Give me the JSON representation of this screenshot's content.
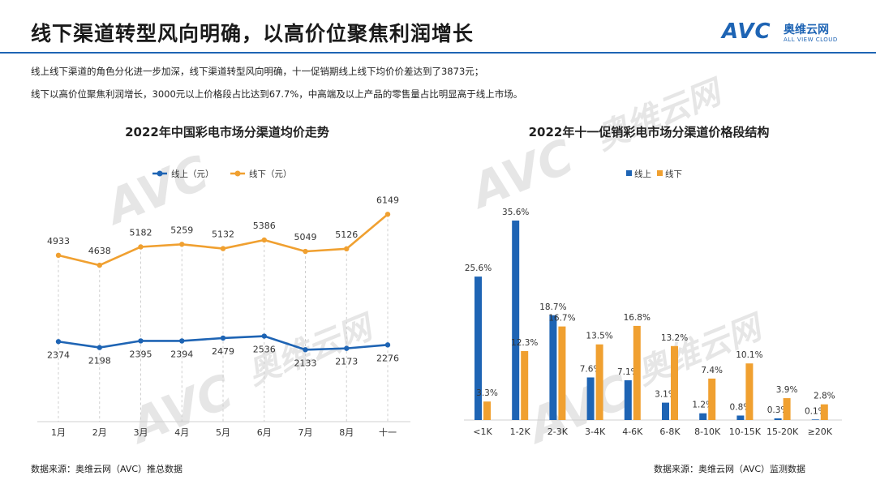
{
  "header": {
    "title": "线下渠道转型风向明确，以高价位聚焦利润增长",
    "logo_mark": "AVC",
    "logo_cn": "奥维云网",
    "logo_en": "ALL VIEW CLOUD",
    "brand_color": "#1e64b4"
  },
  "description": {
    "line1": "线上线下渠道的角色分化进一步加深，线下渠道转型风向明确，十一促销期线上线下均价价差达到了3873元；",
    "line2": "线下以高价位聚焦利润增长，3000元以上价格段占比达到67.7%，中高端及以上产品的零售量占比明显高于线上市场。"
  },
  "sources": {
    "left": "数据来源：奥维云网（AVC）推总数据",
    "right": "数据来源：奥维云网（AVC）监测数据"
  },
  "chart_data": [
    {
      "type": "line",
      "title": "2022年中国彩电市场分渠道均价走势",
      "categories": [
        "1月",
        "2月",
        "3月",
        "4月",
        "5月",
        "6月",
        "7月",
        "8月",
        "十一"
      ],
      "series": [
        {
          "name": "线上（元）",
          "color": "#1e64b4",
          "values": [
            2374,
            2198,
            2395,
            2394,
            2479,
            2536,
            2133,
            2173,
            2276
          ]
        },
        {
          "name": "线下（元）",
          "color": "#f0a030",
          "values": [
            4933,
            4638,
            5182,
            5259,
            5132,
            5386,
            5049,
            5126,
            6149
          ]
        }
      ],
      "legend": "top",
      "grid": false,
      "ylim": [
        0,
        7000
      ]
    },
    {
      "type": "bar",
      "title": "2022年十一促销彩电市场分渠道价格段结构",
      "categories": [
        "<1K",
        "1-2K",
        "2-3K",
        "3-4K",
        "4-6K",
        "6-8K",
        "8-10K",
        "10-15K",
        "15-20K",
        "≥20K"
      ],
      "series": [
        {
          "name": "线上",
          "color": "#1e64b4",
          "values": [
            25.6,
            35.6,
            18.7,
            7.6,
            7.1,
            3.1,
            1.2,
            0.8,
            0.3,
            0.1
          ]
        },
        {
          "name": "线下",
          "color": "#f0a030",
          "values": [
            3.3,
            12.3,
            16.7,
            13.5,
            16.8,
            13.2,
            7.4,
            10.1,
            3.9,
            2.8
          ]
        }
      ],
      "value_labels": {
        "line": [
          "25.6%",
          "35.6%",
          "18.7%",
          "7.6%",
          "7.1%",
          "3.1%",
          "1.2%",
          "0.8%",
          "0.3%",
          "0.1%"
        ],
        "offline": [
          "3.3%",
          "12.3%",
          "16.7%",
          "13.5%",
          "16.8%",
          "13.2%",
          "7.4%",
          "10.1%",
          "3.9%",
          "2.8%"
        ]
      },
      "legend": "top",
      "ylim": [
        0,
        40
      ]
    }
  ]
}
